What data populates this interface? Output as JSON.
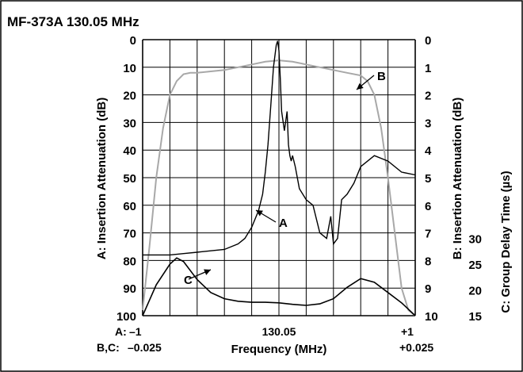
{
  "chart_data": {
    "type": "line",
    "title": "MF-373A 130.05 MHz",
    "xlabel": "Frequency (MHz)",
    "ylabel_left": "A: Insertion Attenuation (dB)",
    "ylabel_right_b": "B: Insertion Attenuation (dB)",
    "ylabel_right_c": "C: Group Delay Time (µs)",
    "x_row_a": {
      "prefix": "A:",
      "left": "–1",
      "center": "130.05",
      "right": "+1"
    },
    "x_row_bc": {
      "prefix": "B,C:",
      "left": "–0.025",
      "right": "+0.025"
    },
    "x_range": [
      -1,
      1
    ],
    "y_left_ticks": [
      "0",
      "10",
      "20",
      "30",
      "40",
      "50",
      "60",
      "70",
      "80",
      "90",
      "100"
    ],
    "y_left_range": [
      0,
      100
    ],
    "y_left_inverted": true,
    "y_right_b_ticks": [
      "0",
      "1",
      "2",
      "3",
      "4",
      "5",
      "6",
      "7",
      "8",
      "9",
      "10"
    ],
    "y_right_b_range": [
      0,
      10
    ],
    "y_right_c_ticks": [
      "30",
      "25",
      "20",
      "15"
    ],
    "y_right_c_range": [
      15,
      30
    ],
    "grid": true,
    "colors": {
      "A": "#000000",
      "B": "#a8a8a8",
      "C": "#000000",
      "grid": "#000000"
    },
    "series": [
      {
        "name": "A",
        "axis": "left",
        "x": [
          -1.0,
          -0.9,
          -0.8,
          -0.7,
          -0.6,
          -0.5,
          -0.4,
          -0.3,
          -0.25,
          -0.2,
          -0.15,
          -0.12,
          -0.1,
          -0.08,
          -0.06,
          -0.04,
          -0.02,
          -0.01,
          0.0,
          0.01,
          0.02,
          0.04,
          0.06,
          0.07,
          0.08,
          0.09,
          0.1,
          0.12,
          0.15,
          0.2,
          0.25,
          0.3,
          0.35,
          0.38,
          0.4,
          0.43,
          0.46,
          0.5,
          0.55,
          0.6,
          0.7,
          0.8,
          0.9,
          1.0
        ],
        "values": [
          78,
          78,
          78,
          77.5,
          77,
          76.5,
          76,
          74,
          72,
          68,
          62,
          56,
          48,
          38,
          24,
          10,
          2,
          0.5,
          4,
          14,
          26,
          33,
          26,
          38,
          42,
          44,
          42,
          46,
          54,
          58,
          60,
          70,
          72,
          64,
          74,
          72,
          58,
          56,
          52,
          46,
          42,
          44,
          48,
          49
        ]
      },
      {
        "name": "B",
        "axis": "right_b",
        "x": [
          -1.0,
          -0.95,
          -0.9,
          -0.85,
          -0.8,
          -0.75,
          -0.7,
          -0.65,
          -0.6,
          -0.5,
          -0.4,
          -0.3,
          -0.2,
          -0.1,
          0.0,
          0.1,
          0.2,
          0.3,
          0.4,
          0.5,
          0.6,
          0.65,
          0.7,
          0.75,
          0.8,
          0.85,
          0.9,
          0.95,
          1.0
        ],
        "values": [
          9.8,
          7.5,
          5.0,
          3.2,
          2.0,
          1.5,
          1.25,
          1.2,
          1.2,
          1.15,
          1.1,
          1.0,
          0.9,
          0.8,
          0.75,
          0.8,
          0.9,
          1.0,
          1.1,
          1.2,
          1.3,
          1.5,
          2.0,
          3.2,
          5.0,
          7.0,
          9.0,
          9.8,
          10
        ]
      },
      {
        "name": "C",
        "axis": "right_c",
        "x": [
          -1.0,
          -0.9,
          -0.8,
          -0.75,
          -0.7,
          -0.6,
          -0.5,
          -0.4,
          -0.3,
          -0.2,
          -0.1,
          0.0,
          0.1,
          0.2,
          0.3,
          0.4,
          0.5,
          0.6,
          0.7,
          0.8,
          0.9,
          1.0
        ],
        "values": [
          15,
          21,
          25,
          26.2,
          25.5,
          22,
          19.5,
          18.3,
          17.8,
          17.6,
          17.6,
          17.5,
          17.2,
          17.0,
          17.3,
          18.3,
          20.5,
          22.2,
          21.5,
          19.5,
          17.5,
          15.0
        ]
      }
    ],
    "annotations": [
      {
        "label": "A",
        "tip_x": 0.0,
        "tip_y": 62,
        "axis": "left"
      },
      {
        "label": "B",
        "tip_x": 0.0,
        "tip_y": 1.5,
        "axis": "right_b"
      },
      {
        "label": "C",
        "tip_x": 0.0,
        "tip_y": 22,
        "axis": "right_c"
      }
    ]
  }
}
